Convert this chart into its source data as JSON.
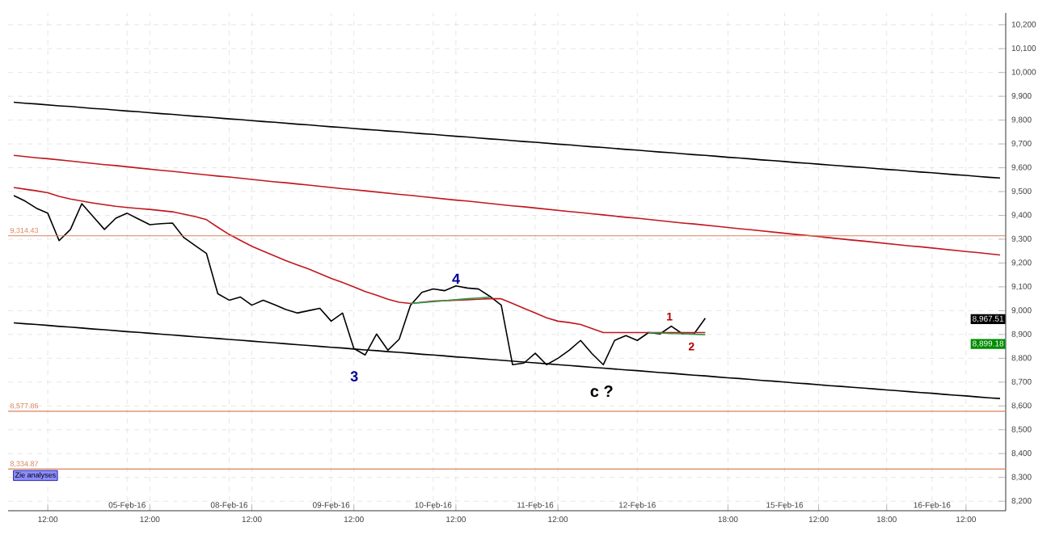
{
  "chart_data": {
    "type": "line",
    "ylim": [
      8160,
      10250
    ],
    "categories": [
      null,
      null,
      null,
      "12:00",
      null,
      null,
      null,
      null,
      null,
      null,
      "05-Feb-16",
      null,
      "12:00",
      null,
      null,
      null,
      null,
      null,
      null,
      "08-Feb-16",
      null,
      "12:00",
      null,
      null,
      null,
      null,
      null,
      null,
      "09-Feb-16",
      null,
      "12:00",
      null,
      null,
      null,
      null,
      null,
      null,
      "10-Feb-16",
      null,
      "12:00",
      null,
      null,
      null,
      null,
      null,
      null,
      "11-Feb-16",
      null,
      "12:00",
      null,
      null,
      null,
      null,
      null,
      null,
      "12-Feb-16",
      null,
      null,
      null,
      null,
      null,
      null,
      null,
      "18:00",
      null,
      null,
      null,
      null,
      "15-Feb-16",
      null,
      null,
      "12:00",
      null,
      null,
      null,
      null,
      null,
      "18:00",
      null,
      null,
      null,
      "16-Feb-16",
      null,
      null,
      "12:00",
      null,
      null,
      null
    ],
    "yticks": [
      {
        "value": 8200,
        "label": "8,200"
      },
      {
        "value": 8300,
        "label": "8,300"
      },
      {
        "value": 8400,
        "label": "8,400"
      },
      {
        "value": 8500,
        "label": "8,500"
      },
      {
        "value": 8600,
        "label": "8,600"
      },
      {
        "value": 8700,
        "label": "8,700"
      },
      {
        "value": 8800,
        "label": "8,800"
      },
      {
        "value": 8900,
        "label": "8,900"
      },
      {
        "value": 9000,
        "label": "9,000"
      },
      {
        "value": 9100,
        "label": "9,100"
      },
      {
        "value": 9200,
        "label": "9,200"
      },
      {
        "value": 9300,
        "label": "9,300"
      },
      {
        "value": 9400,
        "label": "9,400"
      },
      {
        "value": 9500,
        "label": "9,500"
      },
      {
        "value": 9600,
        "label": "9,600"
      },
      {
        "value": 9700,
        "label": "9,700"
      },
      {
        "value": 9800,
        "label": "9,800"
      },
      {
        "value": 9900,
        "label": "9,900"
      },
      {
        "value": 10000,
        "label": "10,000"
      },
      {
        "value": 10100,
        "label": "10,100"
      },
      {
        "value": 10200,
        "label": "10,200"
      }
    ],
    "grid": true,
    "marker": "none",
    "line_style": "solid",
    "series": [
      {
        "color": "#000000",
        "values": [
          9483,
          9460,
          9430,
          9409,
          9294,
          9341,
          9449,
          9395,
          9341,
          9388,
          9409,
          9385,
          9361,
          9365,
          9368,
          9307,
          9273,
          9240,
          9071,
          9044,
          9057,
          9023,
          9044,
          9025,
          9005,
          8990,
          9000,
          9010,
          8956,
          8990,
          8841,
          8814,
          8902,
          8834,
          8880,
          9023,
          9077,
          9091,
          9084,
          9104,
          9095,
          9091,
          9060,
          9023,
          8773,
          8780,
          8821,
          8773,
          8800,
          8834,
          8875,
          8820,
          8773,
          8875,
          8895,
          8875,
          8908,
          8902,
          8935,
          8902,
          8902,
          8968,
          null,
          null,
          null,
          null,
          null,
          null,
          null,
          null,
          null,
          null,
          null,
          null,
          null,
          null,
          null,
          null,
          null,
          null,
          null,
          null,
          null,
          null,
          null,
          null,
          null,
          null
        ]
      },
      {
        "color": "#c0171f",
        "values": [
          9517,
          9510,
          9503,
          9495,
          9480,
          9469,
          9460,
          9452,
          9445,
          9438,
          9433,
          9429,
          9425,
          9420,
          9415,
          9405,
          9395,
          9382,
          9350,
          9320,
          9295,
          9270,
          9250,
          9230,
          9210,
          9192,
          9175,
          9155,
          9135,
          9118,
          9100,
          9080,
          9065,
          9048,
          9035,
          9030,
          9035,
          9040,
          9042,
          9044,
          9046,
          9048,
          9050,
          9050,
          9030,
          9010,
          8990,
          8970,
          8956,
          8950,
          8942,
          8925,
          8908,
          8908,
          8908,
          8908,
          8908,
          8908,
          8908,
          8908,
          8908,
          8908,
          null,
          null,
          null,
          null,
          null,
          null,
          null,
          null,
          null,
          null,
          null,
          null,
          null,
          null,
          null,
          null,
          null,
          null,
          null,
          null,
          null,
          null,
          null,
          null,
          null,
          null
        ]
      },
      {
        "color": "#2e9e4a",
        "values": [
          null,
          null,
          null,
          null,
          null,
          null,
          null,
          null,
          null,
          null,
          null,
          null,
          null,
          null,
          null,
          null,
          null,
          null,
          null,
          null,
          null,
          null,
          null,
          null,
          null,
          null,
          null,
          null,
          null,
          null,
          null,
          null,
          null,
          null,
          null,
          9030,
          9034,
          9038,
          9042,
          9046,
          9050,
          9053,
          9057,
          null,
          null,
          null,
          null,
          null,
          null,
          null,
          null,
          null,
          null,
          null,
          null,
          null,
          8908,
          8906,
          8904,
          8903,
          8901,
          8899,
          null,
          null,
          null,
          null,
          null,
          null,
          null,
          null,
          null,
          null,
          null,
          null,
          null,
          null,
          null,
          null,
          null,
          null,
          null,
          null,
          null,
          null,
          null,
          null,
          null,
          null
        ]
      },
      {
        "color": "#000000",
        "values": [
          9875,
          9871,
          9868,
          9864,
          9860,
          9857,
          9853,
          9849,
          9846,
          9842,
          9838,
          9835,
          9831,
          9827,
          9824,
          9820,
          9816,
          9813,
          9809,
          9805,
          9802,
          9798,
          9794,
          9791,
          9787,
          9783,
          9780,
          9776,
          9772,
          9769,
          9765,
          9761,
          9758,
          9754,
          9751,
          9747,
          9743,
          9740,
          9736,
          9732,
          9729,
          9725,
          9721,
          9718,
          9714,
          9710,
          9707,
          9703,
          9699,
          9696,
          9692,
          9688,
          9685,
          9681,
          9677,
          9674,
          9670,
          9666,
          9663,
          9659,
          9655,
          9652,
          9648,
          9644,
          9641,
          9637,
          9633,
          9630,
          9626,
          9622,
          9619,
          9615,
          9611,
          9608,
          9604,
          9601,
          9597,
          9593,
          9590,
          9586,
          9582,
          9579,
          9575,
          9571,
          9568,
          9564,
          9560,
          9557
        ]
      },
      {
        "color": "#c0171f",
        "values": [
          9652,
          9647,
          9642,
          9638,
          9633,
          9628,
          9623,
          9618,
          9613,
          9609,
          9604,
          9599,
          9594,
          9589,
          9585,
          9580,
          9575,
          9570,
          9565,
          9561,
          9556,
          9551,
          9546,
          9541,
          9537,
          9532,
          9527,
          9522,
          9517,
          9512,
          9508,
          9503,
          9498,
          9493,
          9488,
          9484,
          9479,
          9474,
          9469,
          9464,
          9460,
          9455,
          9450,
          9445,
          9440,
          9436,
          9431,
          9426,
          9421,
          9416,
          9412,
          9407,
          9402,
          9397,
          9392,
          9388,
          9383,
          9378,
          9373,
          9368,
          9364,
          9359,
          9354,
          9349,
          9344,
          9340,
          9335,
          9330,
          9325,
          9320,
          9316,
          9311,
          9306,
          9301,
          9296,
          9292,
          9287,
          9282,
          9277,
          9272,
          9268,
          9263,
          9258,
          9253,
          9248,
          9244,
          9239,
          9234
        ]
      },
      {
        "color": "#000000",
        "values": [
          8949,
          8945,
          8942,
          8938,
          8934,
          8931,
          8927,
          8923,
          8920,
          8916,
          8912,
          8909,
          8905,
          8901,
          8898,
          8894,
          8890,
          8887,
          8883,
          8879,
          8876,
          8872,
          8868,
          8865,
          8861,
          8857,
          8854,
          8850,
          8846,
          8843,
          8839,
          8835,
          8832,
          8828,
          8825,
          8821,
          8817,
          8814,
          8810,
          8806,
          8803,
          8799,
          8795,
          8792,
          8788,
          8784,
          8781,
          8777,
          8773,
          8770,
          8766,
          8762,
          8759,
          8755,
          8751,
          8748,
          8744,
          8740,
          8737,
          8733,
          8729,
          8726,
          8722,
          8718,
          8715,
          8711,
          8707,
          8704,
          8700,
          8696,
          8693,
          8689,
          8685,
          8682,
          8678,
          8675,
          8671,
          8667,
          8664,
          8660,
          8656,
          8653,
          8649,
          8645,
          8642,
          8638,
          8634,
          8631
        ]
      }
    ],
    "ref_lines": [
      {
        "axis": "y",
        "value": 9314.43,
        "label": "9,314.43",
        "color": "#d9825b"
      },
      {
        "axis": "y",
        "value": 8577.86,
        "label": "8,577.86",
        "color": "#d9825b"
      },
      {
        "axis": "y",
        "value": 8334.87,
        "label": "8,334.87",
        "color": "#d9825b"
      }
    ],
    "annotations": [
      "3",
      "4",
      "c ?",
      "1",
      "2",
      "8,967.51",
      "8,899.18",
      "Zie analyses"
    ]
  }
}
